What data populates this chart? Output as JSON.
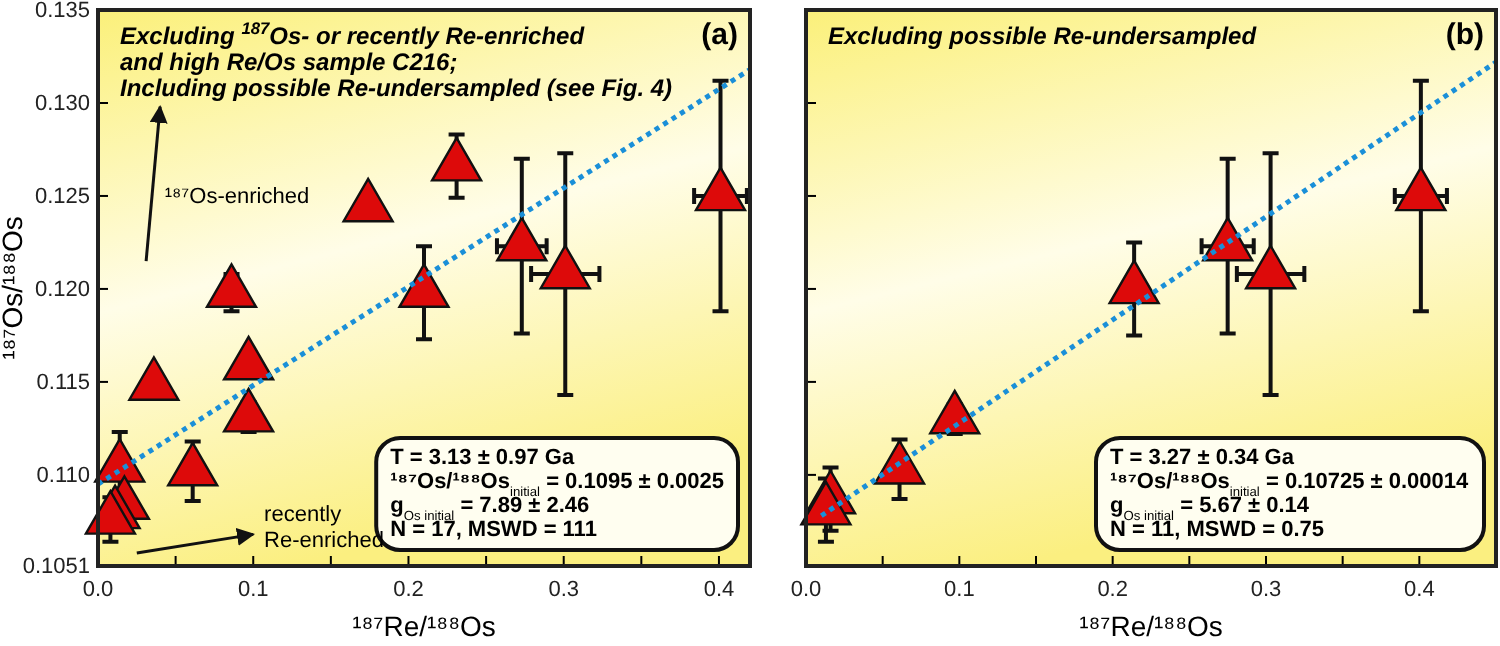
{
  "chart_data": [
    {
      "type": "scatter",
      "title": "(a)",
      "subtitle": "Excluding $^{187}$Os- or recently Re-enriched\nand high Re/Os sample C216;\nIncluding possible Re-undersampled (see Fig. 4)",
      "xlabel": "¹⁸⁷Re/¹⁸⁸Os",
      "ylabel": "¹⁸⁷Os/¹⁸⁸Os",
      "xlim": [
        0,
        0.42
      ],
      "ylim": [
        0.1051,
        0.135
      ],
      "xticks": [
        {
          "value": 0,
          "label": "0.0"
        },
        {
          "value": 0.05,
          "label": null
        },
        0.1,
        {
          "value": 0.15,
          "label": null
        },
        0.2,
        {
          "value": 0.25,
          "label": null
        },
        0.3,
        {
          "value": 0.35,
          "label": null
        },
        0.4
      ],
      "yticks": [
        {
          "value": 0.1051,
          "label": "0.1051"
        },
        {
          "value": 0.11,
          "label": "0.110"
        },
        0.115,
        {
          "value": 0.12,
          "label": "0.120"
        },
        0.125,
        {
          "value": 0.13,
          "label": "0.130"
        },
        0.135
      ],
      "marker": "triangle",
      "grid": false,
      "series": [
        {
          "color": "#dd0a0a",
          "x": [
            0.401,
            0.273,
            0.301,
            0.21,
            0.174,
            0.231,
            0.086,
            0.036,
            0.097,
            0.097,
            0.061,
            0.014,
            0.017,
            0.011,
            0.008
          ],
          "values": [
            0.125,
            0.1223,
            0.1208,
            0.1198,
            0.1244,
            0.1266,
            0.1198,
            0.1148,
            0.1159,
            0.1131,
            0.1102,
            0.1104,
            0.1084,
            0.1079,
            0.1076
          ],
          "errors": [
            0.0062,
            0.0047,
            0.0065,
            0.0025,
            null,
            0.0017,
            0.001,
            null,
            null,
            0.0008,
            0.0016,
            0.0019,
            null,
            null,
            0.0012
          ],
          "xerrors": [
            0.017,
            0.016,
            0.022,
            null,
            null,
            null,
            null,
            null,
            null,
            null,
            null,
            null,
            null,
            null,
            null
          ]
        },
        {
          "type": "line",
          "color": "#1a8fd8",
          "line_style": "dotted",
          "marker": "none",
          "x": [
            0,
            0.42
          ],
          "values": [
            0.1095,
            0.1318
          ]
        }
      ],
      "annotations": [
        "T = 3.13 ± 0.97 Ga",
        "¹⁸⁷Os/¹⁸⁸Os$_{initial}$ = 0.1095 ± 0.0025",
        "g$_{Os initial}$ = 7.89 ± 2.46",
        "N = 17, MSWD = 111",
        "¹⁸⁷Os-enriched",
        "recently",
        "Re-enriched"
      ]
    },
    {
      "type": "scatter",
      "title": "(b)",
      "subtitle": "Excluding possible Re-undersampled",
      "xlabel": "¹⁸⁷Re/¹⁸⁸Os",
      "xlim": [
        0,
        0.45
      ],
      "ylim": [
        0.1051,
        0.135
      ],
      "tick_labels": "x",
      "xticks": [
        {
          "value": 0,
          "label": "0.0"
        },
        {
          "value": 0.05,
          "label": null
        },
        0.1,
        {
          "value": 0.15,
          "label": null
        },
        0.2,
        {
          "value": 0.25,
          "label": null
        },
        0.3,
        {
          "value": 0.35,
          "label": null
        },
        0.4
      ],
      "yticks": [
        0.1051,
        0.11,
        0.115,
        0.12,
        0.125,
        0.13,
        0.135
      ],
      "marker": "triangle",
      "grid": false,
      "series": [
        {
          "color": "#dd0a0a",
          "x": [
            0.401,
            0.275,
            0.303,
            0.214,
            0.097,
            0.061,
            0.016,
            0.013
          ],
          "values": [
            0.125,
            0.1223,
            0.1208,
            0.12,
            0.113,
            0.1103,
            0.1087,
            0.1081
          ],
          "errors": [
            0.0062,
            0.0047,
            0.0065,
            0.0025,
            0.0008,
            0.0016,
            0.0017,
            0.0017
          ],
          "xerrors": [
            0.017,
            0.017,
            0.022,
            null,
            null,
            null,
            null,
            null
          ]
        },
        {
          "type": "line",
          "color": "#1a8fd8",
          "line_style": "dotted",
          "marker": "none",
          "x": [
            0.01,
            0.45
          ],
          "values": [
            0.1078,
            0.1322
          ]
        }
      ],
      "annotations": [
        "T = 3.27 ± 0.34 Ga",
        "¹⁸⁷Os/¹⁸⁸Os$_{initial}$ = 0.10725 ± 0.00014",
        "g$_{Os initial}$ = 5.67 ± 0.14",
        "N = 11, MSWD = 0.75"
      ]
    }
  ]
}
